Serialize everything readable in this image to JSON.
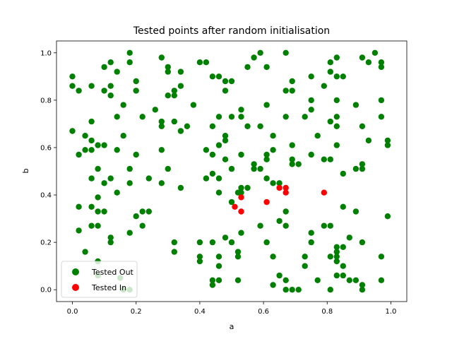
{
  "chart_data": {
    "type": "scatter",
    "title": "Tested points after random initialisation",
    "xlabel": "a",
    "ylabel": "b",
    "xlim": [
      -0.05,
      1.05
    ],
    "ylim": [
      -0.05,
      1.05
    ],
    "xticks": [
      "0.0",
      "0.2",
      "0.4",
      "0.6",
      "0.8",
      "1.0"
    ],
    "yticks": [
      "0.0",
      "0.2",
      "0.4",
      "0.6",
      "0.8",
      "1.0"
    ],
    "grid": false,
    "legend_position": "lower-left",
    "series": [
      {
        "name": "Tested Out",
        "color": "#008000",
        "points": [
          [
            0.0,
            0.9
          ],
          [
            0.0,
            0.86
          ],
          [
            0.0,
            0.67
          ],
          [
            0.02,
            0.84
          ],
          [
            0.02,
            0.57
          ],
          [
            0.02,
            0.35
          ],
          [
            0.02,
            0.25
          ],
          [
            0.04,
            0.65
          ],
          [
            0.04,
            0.59
          ],
          [
            0.04,
            0.16
          ],
          [
            0.06,
            0.86
          ],
          [
            0.06,
            0.71
          ],
          [
            0.06,
            0.63
          ],
          [
            0.06,
            0.59
          ],
          [
            0.06,
            0.47
          ],
          [
            0.06,
            0.35
          ],
          [
            0.06,
            0.27
          ],
          [
            0.08,
            0.61
          ],
          [
            0.08,
            0.51
          ],
          [
            0.08,
            0.39
          ],
          [
            0.08,
            0.33
          ],
          [
            0.08,
            0.27
          ],
          [
            0.08,
            0.12
          ],
          [
            0.1,
            0.94
          ],
          [
            0.1,
            0.84
          ],
          [
            0.1,
            0.61
          ],
          [
            0.1,
            0.45
          ],
          [
            0.1,
            0.33
          ],
          [
            0.12,
            0.96
          ],
          [
            0.12,
            0.86
          ],
          [
            0.12,
            0.82
          ],
          [
            0.12,
            0.47
          ],
          [
            0.12,
            0.22
          ],
          [
            0.12,
            0.2
          ],
          [
            0.14,
            0.92
          ],
          [
            0.14,
            0.73
          ],
          [
            0.14,
            0.59
          ],
          [
            0.14,
            0.41
          ],
          [
            0.16,
            0.78
          ],
          [
            0.16,
            0.65
          ],
          [
            0.18,
            1.0
          ],
          [
            0.18,
            0.96
          ],
          [
            0.18,
            0.51
          ],
          [
            0.18,
            0.45
          ],
          [
            0.18,
            0.24
          ],
          [
            0.2,
            0.88
          ],
          [
            0.2,
            0.84
          ],
          [
            0.2,
            0.57
          ],
          [
            0.2,
            0.31
          ],
          [
            0.22,
            0.73
          ],
          [
            0.22,
            0.33
          ],
          [
            0.22,
            0.27
          ],
          [
            0.24,
            0.47
          ],
          [
            0.24,
            0.33
          ],
          [
            0.26,
            0.76
          ],
          [
            0.28,
            0.98
          ],
          [
            0.28,
            0.71
          ],
          [
            0.28,
            0.69
          ],
          [
            0.28,
            0.59
          ],
          [
            0.28,
            0.45
          ],
          [
            0.3,
            0.94
          ],
          [
            0.3,
            0.92
          ],
          [
            0.3,
            0.82
          ],
          [
            0.3,
            0.51
          ],
          [
            0.32,
            0.84
          ],
          [
            0.32,
            0.82
          ],
          [
            0.32,
            0.71
          ],
          [
            0.32,
            0.2
          ],
          [
            0.32,
            0.16
          ],
          [
            0.34,
            0.92
          ],
          [
            0.34,
            0.86
          ],
          [
            0.34,
            0.67
          ],
          [
            0.34,
            0.43
          ],
          [
            0.36,
            0.69
          ],
          [
            0.38,
            0.78
          ],
          [
            0.4,
            0.96
          ],
          [
            0.4,
            0.2
          ],
          [
            0.4,
            0.14
          ],
          [
            0.4,
            0.12
          ],
          [
            0.42,
            0.96
          ],
          [
            0.42,
            0.59
          ],
          [
            0.42,
            0.47
          ],
          [
            0.44,
            0.9
          ],
          [
            0.44,
            0.69
          ],
          [
            0.44,
            0.57
          ],
          [
            0.44,
            0.49
          ],
          [
            0.44,
            0.2
          ],
          [
            0.44,
            0.04
          ],
          [
            0.44,
            0.02
          ],
          [
            0.46,
            0.9
          ],
          [
            0.46,
            0.73
          ],
          [
            0.46,
            0.61
          ],
          [
            0.46,
            0.47
          ],
          [
            0.46,
            0.41
          ],
          [
            0.46,
            0.14
          ],
          [
            0.46,
            0.1
          ],
          [
            0.46,
            0.04
          ],
          [
            0.48,
            0.88
          ],
          [
            0.48,
            0.84
          ],
          [
            0.48,
            0.65
          ],
          [
            0.48,
            0.63
          ],
          [
            0.48,
            0.55
          ],
          [
            0.48,
            0.22
          ],
          [
            0.5,
            0.88
          ],
          [
            0.5,
            0.73
          ],
          [
            0.5,
            0.51
          ],
          [
            0.5,
            0.37
          ],
          [
            0.5,
            0.2
          ],
          [
            0.52,
            0.41
          ],
          [
            0.52,
            0.16
          ],
          [
            0.52,
            0.14
          ],
          [
            0.52,
            0.04
          ],
          [
            0.53,
            0.76
          ],
          [
            0.53,
            0.73
          ],
          [
            0.53,
            0.57
          ],
          [
            0.53,
            0.43
          ],
          [
            0.53,
            0.41
          ],
          [
            0.53,
            0.24
          ],
          [
            0.55,
            0.94
          ],
          [
            0.55,
            0.69
          ],
          [
            0.55,
            0.43
          ],
          [
            0.57,
            0.98
          ],
          [
            0.57,
            0.53
          ],
          [
            0.57,
            0.51
          ],
          [
            0.59,
            1.0
          ],
          [
            0.59,
            0.69
          ],
          [
            0.59,
            0.51
          ],
          [
            0.59,
            0.27
          ],
          [
            0.61,
            0.94
          ],
          [
            0.61,
            0.78
          ],
          [
            0.61,
            0.57
          ],
          [
            0.61,
            0.55
          ],
          [
            0.61,
            0.47
          ],
          [
            0.61,
            0.2
          ],
          [
            0.63,
            0.65
          ],
          [
            0.63,
            0.59
          ],
          [
            0.63,
            0.45
          ],
          [
            0.63,
            0.14
          ],
          [
            0.63,
            0.02
          ],
          [
            0.65,
            0.45
          ],
          [
            0.65,
            0.29
          ],
          [
            0.65,
            0.06
          ],
          [
            0.67,
            1.0
          ],
          [
            0.67,
            0.84
          ],
          [
            0.67,
            0.73
          ],
          [
            0.67,
            0.33
          ],
          [
            0.67,
            0.27
          ],
          [
            0.67,
            0.04
          ],
          [
            0.67,
            0.0
          ],
          [
            0.69,
            0.88
          ],
          [
            0.69,
            0.84
          ],
          [
            0.69,
            0.61
          ],
          [
            0.69,
            0.55
          ],
          [
            0.69,
            0.53
          ],
          [
            0.69,
            0.0
          ],
          [
            0.71,
            0.53
          ],
          [
            0.71,
            0.0
          ],
          [
            0.73,
            0.73
          ],
          [
            0.73,
            0.14
          ],
          [
            0.73,
            0.1
          ],
          [
            0.75,
            0.9
          ],
          [
            0.75,
            0.8
          ],
          [
            0.75,
            0.76
          ],
          [
            0.75,
            0.57
          ],
          [
            0.75,
            0.24
          ],
          [
            0.75,
            0.2
          ],
          [
            0.77,
            0.65
          ],
          [
            0.77,
            0.04
          ],
          [
            0.79,
            0.86
          ],
          [
            0.79,
            0.55
          ],
          [
            0.79,
            0.27
          ],
          [
            0.81,
            0.96
          ],
          [
            0.81,
            0.92
          ],
          [
            0.81,
            0.71
          ],
          [
            0.81,
            0.55
          ],
          [
            0.81,
            0.27
          ],
          [
            0.81,
            0.14
          ],
          [
            0.81,
            0.0
          ],
          [
            0.83,
            0.98
          ],
          [
            0.83,
            0.9
          ],
          [
            0.83,
            0.8
          ],
          [
            0.83,
            0.73
          ],
          [
            0.83,
            0.69
          ],
          [
            0.83,
            0.61
          ],
          [
            0.83,
            0.18
          ],
          [
            0.83,
            0.16
          ],
          [
            0.83,
            0.14
          ],
          [
            0.83,
            0.12
          ],
          [
            0.83,
            0.06
          ],
          [
            0.85,
            0.9
          ],
          [
            0.85,
            0.49
          ],
          [
            0.85,
            0.35
          ],
          [
            0.85,
            0.1
          ],
          [
            0.85,
            0.06
          ],
          [
            0.87,
            0.22
          ],
          [
            0.87,
            0.04
          ],
          [
            0.89,
            0.78
          ],
          [
            0.89,
            0.51
          ],
          [
            0.89,
            0.33
          ],
          [
            0.89,
            0.04
          ],
          [
            0.91,
            0.98
          ],
          [
            0.91,
            0.69
          ],
          [
            0.91,
            0.53
          ],
          [
            0.91,
            0.51
          ],
          [
            0.91,
            0.2
          ],
          [
            0.91,
            0.02
          ],
          [
            0.91,
            0.0
          ],
          [
            0.93,
            0.96
          ],
          [
            0.93,
            0.63
          ],
          [
            0.95,
            1.0
          ],
          [
            0.97,
            0.96
          ],
          [
            0.97,
            0.94
          ],
          [
            0.97,
            0.8
          ],
          [
            0.97,
            0.73
          ],
          [
            0.97,
            0.14
          ],
          [
            0.97,
            0.04
          ],
          [
            0.99,
            0.63
          ],
          [
            0.99,
            0.61
          ],
          [
            0.99,
            0.31
          ],
          [
            0.18,
            0.0
          ],
          [
            0.16,
            0.0
          ],
          [
            0.08,
            0.06
          ],
          [
            0.85,
            0.18
          ],
          [
            0.15,
            0.05
          ]
        ]
      },
      {
        "name": "Tested In",
        "color": "#ff0000",
        "points": [
          [
            0.51,
            0.35
          ],
          [
            0.53,
            0.39
          ],
          [
            0.53,
            0.33
          ],
          [
            0.61,
            0.37
          ],
          [
            0.65,
            0.43
          ],
          [
            0.67,
            0.43
          ],
          [
            0.67,
            0.41
          ],
          [
            0.79,
            0.41
          ]
        ]
      }
    ]
  }
}
